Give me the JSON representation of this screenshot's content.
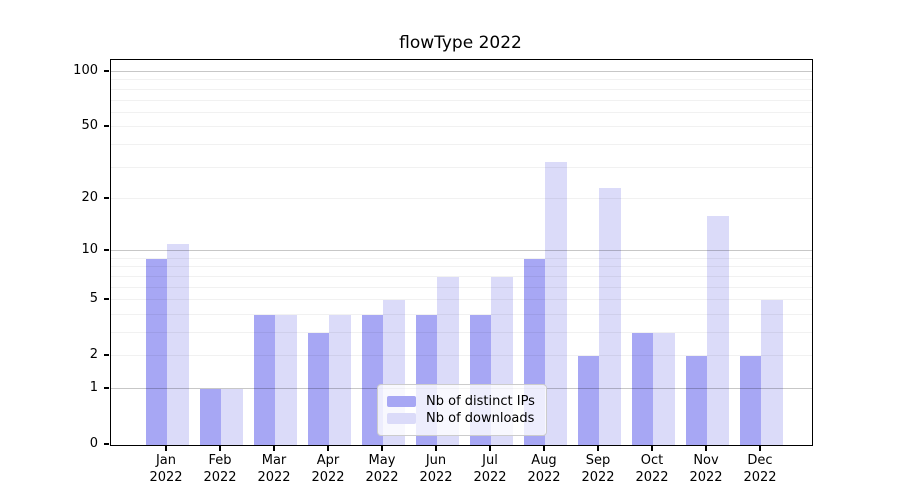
{
  "title": "flowType 2022",
  "chart_data": {
    "type": "bar",
    "title": "flowType 2022",
    "yscale": "log1p",
    "grid": true,
    "legend_position": "lower center",
    "categories": [
      "Jan 2022",
      "Feb 2022",
      "Mar 2022",
      "Apr 2022",
      "May 2022",
      "Jun 2022",
      "Jul 2022",
      "Aug 2022",
      "Sep 2022",
      "Oct 2022",
      "Nov 2022",
      "Dec 2022"
    ],
    "series": [
      {
        "name": "Nb of distinct IPs",
        "color": "#a7a7f4",
        "values": [
          9,
          1,
          4,
          3,
          4,
          4,
          4,
          9,
          2,
          3,
          2,
          2
        ]
      },
      {
        "name": "Nb of downloads",
        "color": "#dbdbf9",
        "values": [
          11,
          1,
          4,
          4,
          5,
          7,
          7,
          32,
          23,
          3,
          16,
          5
        ]
      }
    ],
    "xlabel": "",
    "ylabel": "",
    "ylim": [
      0,
      116
    ],
    "yticks": [
      0,
      1,
      2,
      5,
      10,
      20,
      50,
      100
    ],
    "gridlines": {
      "major": [
        1,
        10,
        100
      ],
      "minor": [
        2,
        3,
        4,
        5,
        6,
        7,
        8,
        9,
        20,
        30,
        40,
        50,
        60,
        70,
        80,
        90
      ]
    }
  }
}
